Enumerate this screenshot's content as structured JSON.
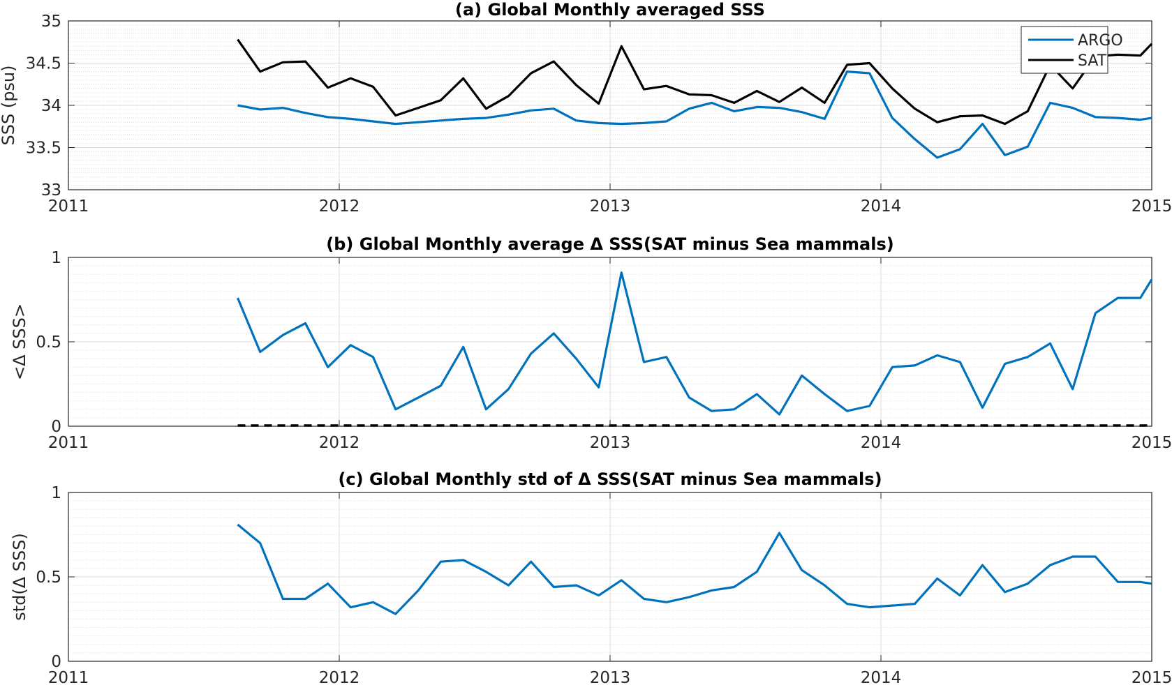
{
  "chart_data": [
    {
      "type": "line",
      "title": "(a) Global Monthly averaged SSS",
      "xlabel": "",
      "ylabel": "SSS (psu)",
      "xlim": [
        2011.0,
        2015.0
      ],
      "ylim": [
        33,
        35
      ],
      "xticks": [
        2011,
        2012,
        2013,
        2014,
        2015
      ],
      "xtick_labels": [
        "2011",
        "2012",
        "2013",
        "2014",
        "2015"
      ],
      "yticks": [
        33,
        33.5,
        34,
        34.5,
        35
      ],
      "ytick_labels": [
        "33",
        "33.5",
        "34",
        "34.5",
        "35"
      ],
      "grid": true,
      "minor_grid": true,
      "legend": "top-right",
      "x": [
        2011.625,
        2011.708,
        2011.792,
        2011.875,
        2011.958,
        2012.042,
        2012.125,
        2012.208,
        2012.292,
        2012.375,
        2012.458,
        2012.542,
        2012.625,
        2012.708,
        2012.792,
        2012.875,
        2012.958,
        2013.042,
        2013.125,
        2013.208,
        2013.292,
        2013.375,
        2013.458,
        2013.542,
        2013.625,
        2013.708,
        2013.792,
        2013.875,
        2013.958,
        2014.042,
        2014.125,
        2014.208,
        2014.292,
        2014.375,
        2014.458,
        2014.542,
        2014.625,
        2014.708,
        2014.792,
        2014.875,
        2014.958,
        2015.0
      ],
      "series": [
        {
          "name": "ARGO",
          "color": "#0072BD",
          "values": [
            34.0,
            33.95,
            33.97,
            33.91,
            33.86,
            33.84,
            33.81,
            33.78,
            33.8,
            33.82,
            33.84,
            33.85,
            33.89,
            33.94,
            33.96,
            33.82,
            33.79,
            33.78,
            33.79,
            33.81,
            33.96,
            34.03,
            33.93,
            33.98,
            33.97,
            33.92,
            33.84,
            34.4,
            34.38,
            33.85,
            33.6,
            33.38,
            33.48,
            33.78,
            33.41,
            33.51,
            34.03,
            33.97,
            33.86,
            33.85,
            33.83,
            33.85
          ]
        },
        {
          "name": "SAT",
          "color": "#000000",
          "values": [
            34.78,
            34.4,
            34.51,
            34.52,
            34.21,
            34.32,
            34.22,
            33.88,
            33.97,
            34.06,
            34.32,
            33.96,
            34.11,
            34.38,
            34.52,
            34.24,
            34.02,
            34.7,
            34.19,
            34.23,
            34.13,
            34.12,
            34.03,
            34.17,
            34.04,
            34.21,
            34.03,
            34.48,
            34.5,
            34.2,
            33.96,
            33.8,
            33.87,
            33.88,
            33.78,
            33.93,
            34.48,
            34.2,
            34.58,
            34.6,
            34.59,
            34.73
          ]
        }
      ]
    },
    {
      "type": "line",
      "title": "(b) Global Monthly average Δ SSS(SAT minus Sea mammals)",
      "xlabel": "",
      "ylabel": "<Δ SSS>",
      "xlim": [
        2011.0,
        2015.0
      ],
      "ylim": [
        0,
        1
      ],
      "xticks": [
        2011,
        2012,
        2013,
        2014,
        2015
      ],
      "xtick_labels": [
        "2011",
        "2012",
        "2013",
        "2014",
        "2015"
      ],
      "yticks": [
        0,
        0.5,
        1
      ],
      "ytick_labels": [
        "0",
        "0.5",
        "1"
      ],
      "grid": true,
      "minor_grid": true,
      "x": [
        2011.625,
        2011.708,
        2011.792,
        2011.875,
        2011.958,
        2012.042,
        2012.125,
        2012.208,
        2012.292,
        2012.375,
        2012.458,
        2012.542,
        2012.625,
        2012.708,
        2012.792,
        2012.875,
        2012.958,
        2013.042,
        2013.125,
        2013.208,
        2013.292,
        2013.375,
        2013.458,
        2013.542,
        2013.625,
        2013.708,
        2013.792,
        2013.875,
        2013.958,
        2014.042,
        2014.125,
        2014.208,
        2014.292,
        2014.375,
        2014.458,
        2014.542,
        2014.625,
        2014.708,
        2014.792,
        2014.875,
        2014.958,
        2015.0
      ],
      "series": [
        {
          "color": "#0072BD",
          "values": [
            0.76,
            0.44,
            0.54,
            0.61,
            0.35,
            0.48,
            0.41,
            0.1,
            0.17,
            0.24,
            0.47,
            0.1,
            0.22,
            0.43,
            0.55,
            0.4,
            0.23,
            0.91,
            0.38,
            0.41,
            0.17,
            0.09,
            0.1,
            0.19,
            0.07,
            0.3,
            0.19,
            0.09,
            0.12,
            0.35,
            0.36,
            0.42,
            0.38,
            0.11,
            0.37,
            0.41,
            0.49,
            0.22,
            0.67,
            0.76,
            0.76,
            0.87
          ]
        }
      ],
      "reference_line": {
        "y": 0,
        "style": "dashed",
        "color": "#000000",
        "x_from": 2011.625,
        "x_to": 2015.0
      }
    },
    {
      "type": "line",
      "title": "(c) Global Monthly std of Δ SSS(SAT minus Sea mammals)",
      "xlabel": "",
      "ylabel": "std(Δ SSS)",
      "xlim": [
        2011.0,
        2015.0
      ],
      "ylim": [
        0,
        1
      ],
      "xticks": [
        2011,
        2012,
        2013,
        2014,
        2015
      ],
      "xtick_labels": [
        "2011",
        "2012",
        "2013",
        "2014",
        "2015"
      ],
      "yticks": [
        0,
        0.5,
        1
      ],
      "ytick_labels": [
        "0",
        "0.5",
        "1"
      ],
      "grid": true,
      "minor_grid": true,
      "x": [
        2011.625,
        2011.708,
        2011.792,
        2011.875,
        2011.958,
        2012.042,
        2012.125,
        2012.208,
        2012.292,
        2012.375,
        2012.458,
        2012.542,
        2012.625,
        2012.708,
        2012.792,
        2012.875,
        2012.958,
        2013.042,
        2013.125,
        2013.208,
        2013.292,
        2013.375,
        2013.458,
        2013.542,
        2013.625,
        2013.708,
        2013.792,
        2013.875,
        2013.958,
        2014.042,
        2014.125,
        2014.208,
        2014.292,
        2014.375,
        2014.458,
        2014.542,
        2014.625,
        2014.708,
        2014.792,
        2014.875,
        2014.958,
        2015.0
      ],
      "series": [
        {
          "color": "#0072BD",
          "values": [
            0.81,
            0.7,
            0.37,
            0.37,
            0.46,
            0.32,
            0.35,
            0.28,
            0.42,
            0.59,
            0.6,
            0.53,
            0.45,
            0.59,
            0.44,
            0.45,
            0.39,
            0.48,
            0.37,
            0.35,
            0.38,
            0.42,
            0.44,
            0.53,
            0.76,
            0.54,
            0.45,
            0.34,
            0.32,
            0.33,
            0.34,
            0.49,
            0.39,
            0.57,
            0.41,
            0.46,
            0.57,
            0.62,
            0.62,
            0.47,
            0.47,
            0.46
          ]
        }
      ]
    }
  ]
}
